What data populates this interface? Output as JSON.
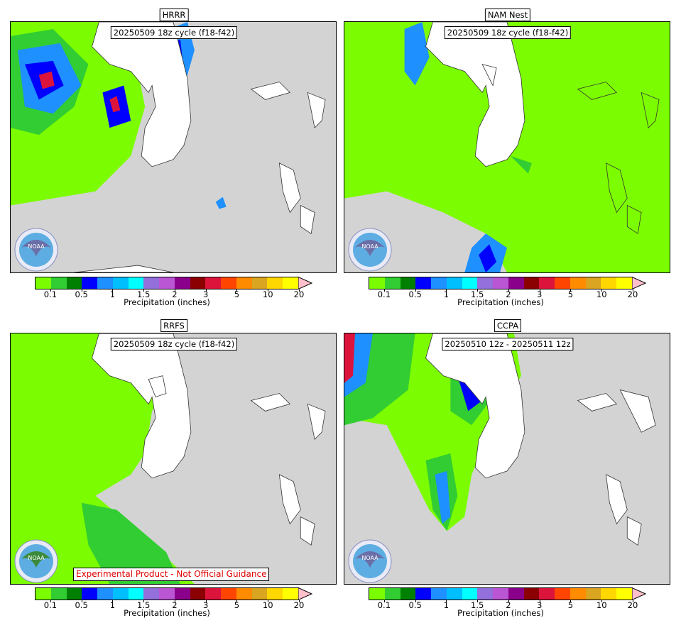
{
  "colorbar": {
    "colors": [
      "#7cfc00",
      "#32cd32",
      "#008000",
      "#0000ff",
      "#1e90ff",
      "#00bfff",
      "#00ffff",
      "#9370db",
      "#ba55d3",
      "#8b008b",
      "#8b0000",
      "#dc143c",
      "#ff4500",
      "#ff8c00",
      "#daa520",
      "#ffd700",
      "#ffff00"
    ],
    "extend_color": "#ffc0cb",
    "ticks": [
      "0.1",
      "0.5",
      "1",
      "1.5",
      "2",
      "3",
      "5",
      "10",
      "20"
    ],
    "label": "Precipitation (inches)"
  },
  "panels": [
    {
      "id": "hrrr",
      "title": "HRRR",
      "cycle": "20250509 18z cycle (f18-f42)",
      "coverage": "sparse"
    },
    {
      "id": "namnest",
      "title": "NAM Nest",
      "cycle": "20250509 18z cycle (f18-f42)",
      "coverage": "full"
    },
    {
      "id": "rrfs",
      "title": "RRFS",
      "cycle": "20250509 18z cycle (f18-f42)",
      "coverage": "west"
    },
    {
      "id": "ccpa",
      "title": "CCPA",
      "cycle": "20250510 12z - 20250511 12z",
      "coverage": "band"
    }
  ],
  "disclaimer": "Experimental Product - Not Official Guidance",
  "logo_label": "NOAA",
  "colors": {
    "land": "#ffffff",
    "background": "#d3d3d3",
    "light_green": "#7cfc00",
    "disclaimer_text": "#e00000"
  }
}
